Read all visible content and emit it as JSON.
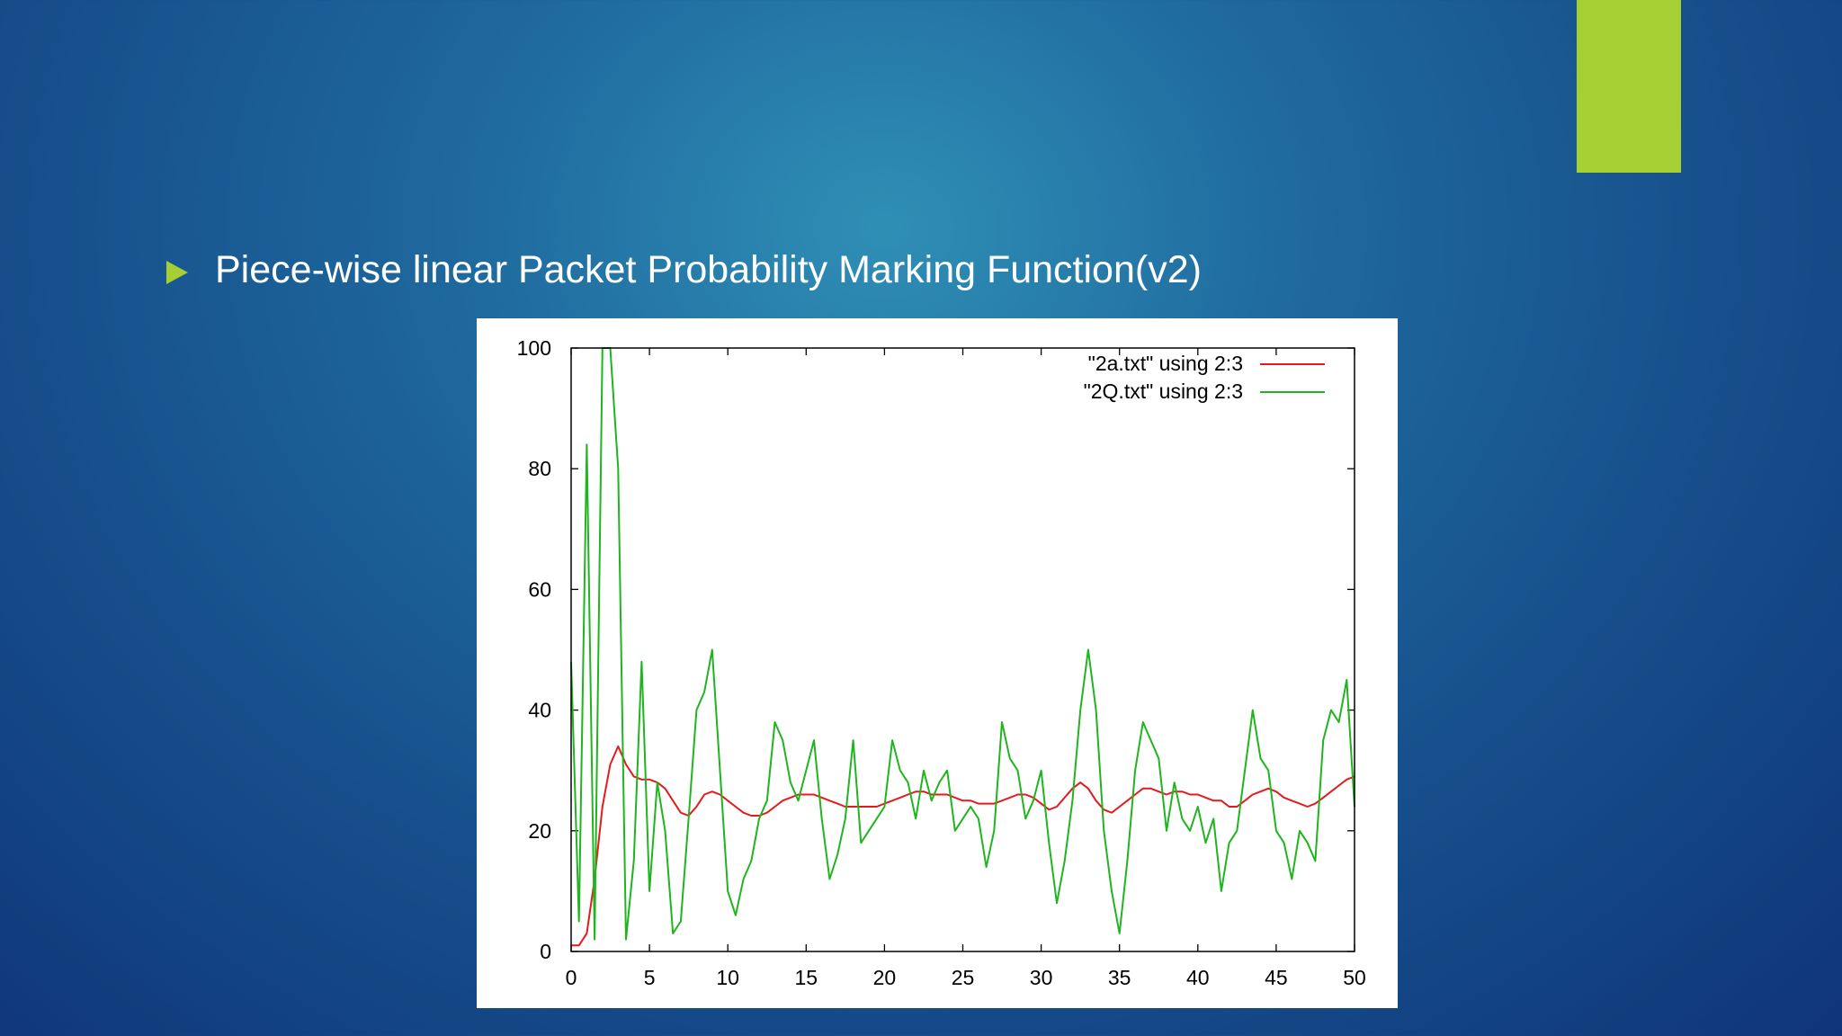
{
  "slide": {
    "bullet": "Piece-wise linear Packet Probability Marking Function(v2)"
  },
  "chart_data": {
    "type": "line",
    "x": [
      0,
      0.5,
      1,
      1.5,
      2,
      2.5,
      3,
      3.5,
      4,
      4.5,
      5,
      5.5,
      6,
      6.5,
      7,
      7.5,
      8,
      8.5,
      9,
      9.5,
      10,
      10.5,
      11,
      11.5,
      12,
      12.5,
      13,
      13.5,
      14,
      14.5,
      15,
      15.5,
      16,
      16.5,
      17,
      17.5,
      18,
      18.5,
      19,
      19.5,
      20,
      20.5,
      21,
      21.5,
      22,
      22.5,
      23,
      23.5,
      24,
      24.5,
      25,
      25.5,
      26,
      26.5,
      27,
      27.5,
      28,
      28.5,
      29,
      29.5,
      30,
      30.5,
      31,
      31.5,
      32,
      32.5,
      33,
      33.5,
      34,
      34.5,
      35,
      35.5,
      36,
      36.5,
      37,
      37.5,
      38,
      38.5,
      39,
      39.5,
      40,
      40.5,
      41,
      41.5,
      42,
      42.5,
      43,
      43.5,
      44,
      44.5,
      45,
      45.5,
      46,
      46.5,
      47,
      47.5,
      48,
      48.5,
      49,
      49.5,
      50
    ],
    "series": [
      {
        "name": "\"2a.txt\" using  2:3",
        "color": "#e41a1c",
        "values": [
          1,
          1,
          3,
          12,
          24,
          31,
          34,
          31,
          29,
          28.5,
          28.5,
          28,
          27,
          25,
          23,
          22.5,
          24,
          26,
          26.5,
          26,
          25,
          24,
          23,
          22.5,
          22.5,
          23,
          24,
          25,
          25.5,
          26,
          26,
          26,
          25.5,
          25,
          24.5,
          24,
          24,
          24,
          24,
          24,
          24.5,
          25,
          25.5,
          26,
          26.5,
          26.5,
          26,
          26,
          26,
          25.5,
          25,
          25,
          24.5,
          24.5,
          24.5,
          25,
          25.5,
          26,
          26,
          25.5,
          24.5,
          23.5,
          24,
          25.5,
          27,
          28,
          27,
          25,
          23.5,
          23,
          24,
          25,
          26,
          27,
          27,
          26.5,
          26,
          26.5,
          26.5,
          26,
          26,
          25.5,
          25,
          25,
          24,
          24,
          25,
          26,
          26.5,
          27,
          26.5,
          25.5,
          25,
          24.5,
          24,
          24.5,
          25.5,
          26.5,
          27.5,
          28.5,
          29
        ]
      },
      {
        "name": "\"2Q.txt\" using 2:3",
        "color": "#1fb51f",
        "values": [
          48,
          5,
          84,
          2,
          100,
          100,
          80,
          2,
          15,
          48,
          10,
          28,
          20,
          3,
          5,
          22,
          40,
          43,
          50,
          30,
          10,
          6,
          12,
          15,
          22,
          25,
          38,
          35,
          28,
          25,
          30,
          35,
          22,
          12,
          16,
          22,
          35,
          18,
          20,
          22,
          24,
          35,
          30,
          28,
          22,
          30,
          25,
          28,
          30,
          20,
          22,
          24,
          22,
          14,
          20,
          38,
          32,
          30,
          22,
          25,
          30,
          18,
          8,
          15,
          25,
          40,
          50,
          40,
          20,
          10,
          3,
          15,
          30,
          38,
          35,
          32,
          20,
          28,
          22,
          20,
          24,
          18,
          22,
          10,
          18,
          20,
          30,
          40,
          32,
          30,
          20,
          18,
          12,
          20,
          18,
          15,
          35,
          40,
          38,
          45,
          24
        ]
      }
    ],
    "xlim": [
      0,
      50
    ],
    "xticks": [
      0,
      5,
      10,
      15,
      20,
      25,
      30,
      35,
      40,
      45,
      50
    ],
    "ylim": [
      0,
      100
    ],
    "yticks": [
      0,
      20,
      40,
      60,
      80,
      100
    ],
    "legend": "top-right"
  }
}
